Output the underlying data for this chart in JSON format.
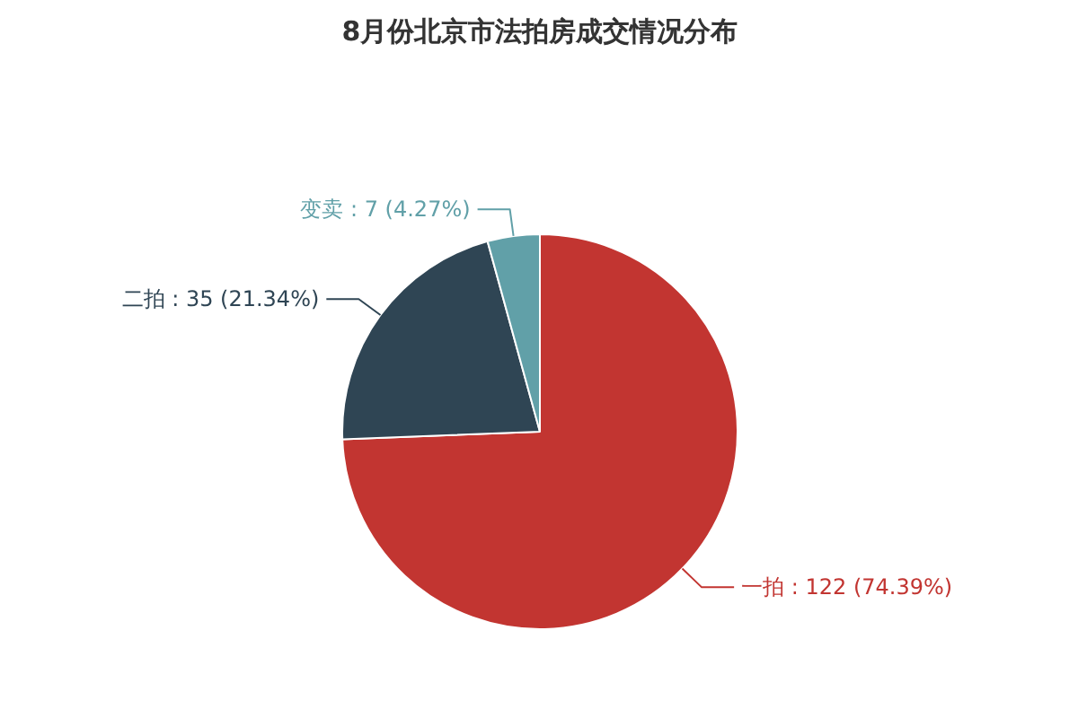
{
  "chart_data": {
    "type": "pie",
    "title": "8月份北京市法拍房成交情况分布",
    "categories": [
      "一拍",
      "二拍",
      "变卖"
    ],
    "values": [
      122,
      35,
      7
    ],
    "colors": [
      "#c23531",
      "#2f4554",
      "#61a0a8"
    ],
    "value_labels": [
      "122 (74.39%)",
      "35 (21.34%)",
      "7 (4.27%)"
    ]
  }
}
